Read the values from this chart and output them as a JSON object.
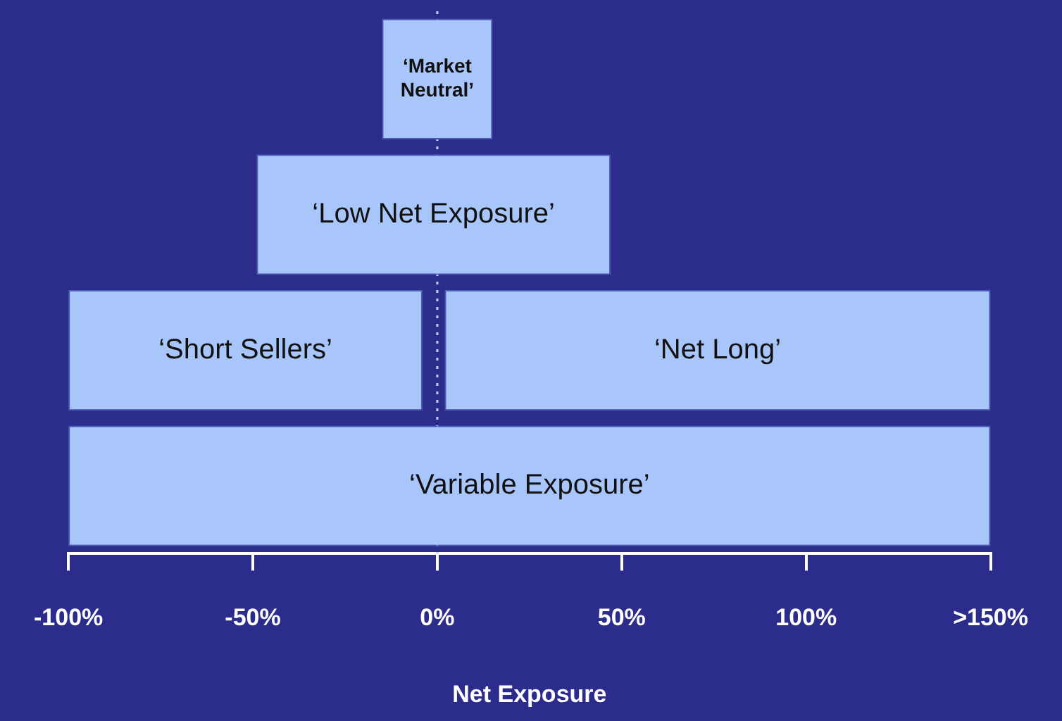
{
  "chart_data": {
    "type": "bar",
    "orientation": "horizontal",
    "categories": [
      null,
      null,
      null,
      null
    ],
    "series": [
      {
        "name": "‘Market Neutral’",
        "color": "#a9c6fb",
        "values": [
          30,
          null,
          null,
          null
        ],
        "base": [
          -15,
          null,
          null,
          null
        ]
      },
      {
        "name": "‘Low Net Exposure’",
        "color": "#a9c6fb",
        "values": [
          null,
          96,
          null,
          null
        ],
        "base": [
          null,
          -49,
          null,
          null
        ]
      },
      {
        "name": "‘Short Sellers’",
        "color": "#a9c6fb",
        "values": [
          null,
          null,
          96,
          null
        ],
        "base": [
          null,
          null,
          -100,
          null
        ]
      },
      {
        "name": "‘Net Long’",
        "color": "#a9c6fb",
        "values": [
          null,
          null,
          148,
          null
        ],
        "base": [
          null,
          null,
          2,
          null
        ]
      },
      {
        "name": "‘Variable Exposure’",
        "color": "#a9c6fb",
        "values": [
          null,
          null,
          null,
          250
        ],
        "base": [
          null,
          null,
          null,
          -100
        ]
      }
    ],
    "xlim": [
      -100,
      150
    ],
    "xticks": [
      {
        "value": -100,
        "label": "-100%"
      },
      {
        "value": -50,
        "label": "-50%"
      },
      {
        "value": 0,
        "label": "0%"
      },
      {
        "value": 50,
        "label": "50%"
      },
      {
        "value": 100,
        "label": "100%"
      },
      {
        "value": 150,
        "label": ">150%"
      }
    ],
    "xlabel": "Net Exposure",
    "ref_lines": [
      {
        "axis": "x",
        "value": 0,
        "line_style": "dotted",
        "color": "#c8d0ff"
      }
    ],
    "grid": false,
    "legend": false,
    "tick_labels": "x"
  }
}
